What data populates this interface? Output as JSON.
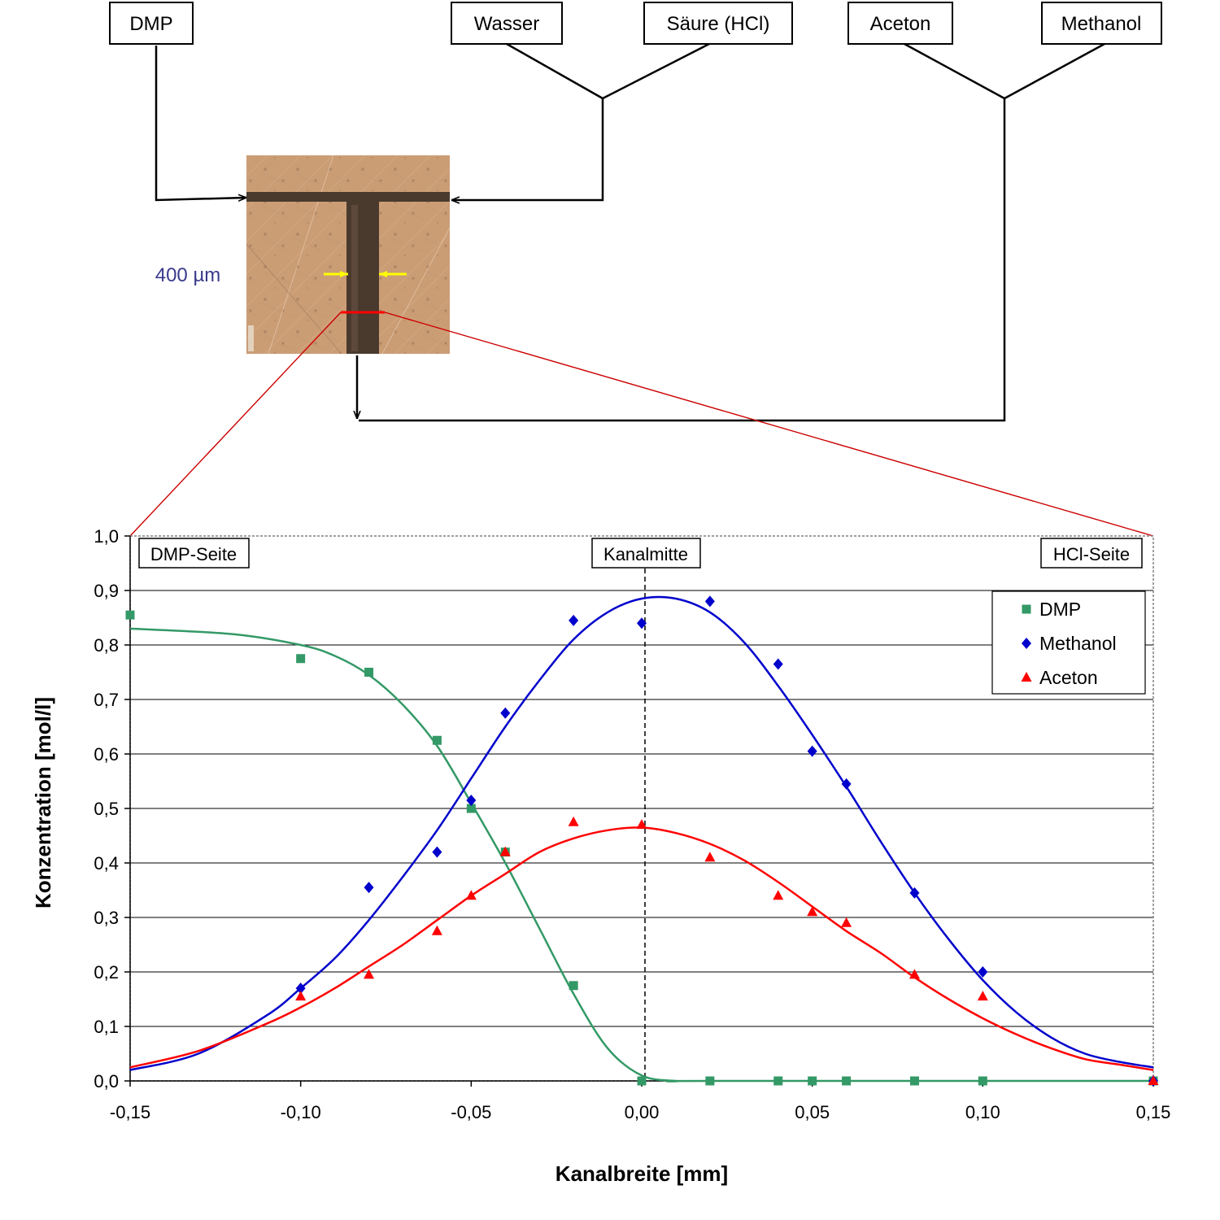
{
  "diagram": {
    "inputs": [
      {
        "id": "dmp",
        "label": "DMP"
      },
      {
        "id": "wasser",
        "label": "Wasser"
      },
      {
        "id": "saeure",
        "label": "Säure (HCl)"
      },
      {
        "id": "aceton",
        "label": "Aceton"
      },
      {
        "id": "methanol",
        "label": "Methanol"
      }
    ],
    "scale_label": "400 µm",
    "colors": {
      "lines": "#000000",
      "zoom_lines": "#cc0000",
      "scale_label": "#3a3a8c",
      "marker_arrows": "#ffff00"
    }
  },
  "chart_data": {
    "type": "scatter",
    "xlabel": "Kanalbreite [mm]",
    "ylabel": "Konzentration [mol/l]",
    "xlim": [
      -0.15,
      0.15
    ],
    "ylim": [
      0.0,
      1.0
    ],
    "x_ticks": [
      -0.15,
      -0.1,
      -0.05,
      0.0,
      0.05,
      0.1,
      0.15
    ],
    "x_tick_labels": [
      "-0,15",
      "-0,10",
      "-0,05",
      "0,00",
      "0,05",
      "0,10",
      "0,15"
    ],
    "y_ticks": [
      0.0,
      0.1,
      0.2,
      0.3,
      0.4,
      0.5,
      0.6,
      0.7,
      0.8,
      0.9,
      1.0
    ],
    "y_tick_labels": [
      "0,0",
      "0,1",
      "0,2",
      "0,3",
      "0,4",
      "0,5",
      "0,6",
      "0,7",
      "0,8",
      "0,9",
      "1,0"
    ],
    "grid": "horizontal",
    "legend_position": "top-right",
    "annotations": {
      "left": "DMP-Seite",
      "center": "Kanalmitte",
      "right": "HCl-Seite"
    },
    "center_line_x": 0.0,
    "series": [
      {
        "name": "DMP",
        "marker": "square",
        "color": "#339966",
        "x": [
          -0.15,
          -0.1,
          -0.08,
          -0.06,
          -0.05,
          -0.04,
          -0.02,
          0.0,
          0.02,
          0.04,
          0.05,
          0.06,
          0.08,
          0.1,
          0.15
        ],
        "y": [
          0.855,
          0.775,
          0.75,
          0.625,
          0.5,
          0.42,
          0.175,
          0.0,
          0.0,
          0.0,
          0.0,
          0.0,
          0.0,
          0.0,
          0.0
        ],
        "fit": {
          "x": [
            -0.15,
            -0.12,
            -0.1,
            -0.09,
            -0.08,
            -0.07,
            -0.06,
            -0.05,
            -0.04,
            -0.03,
            -0.02,
            -0.01,
            0.0,
            0.01,
            0.02,
            0.15
          ],
          "y": [
            0.83,
            0.82,
            0.8,
            0.78,
            0.745,
            0.69,
            0.615,
            0.51,
            0.4,
            0.28,
            0.16,
            0.06,
            0.01,
            0.0,
            0.0,
            0.0
          ]
        }
      },
      {
        "name": "Methanol",
        "marker": "diamond",
        "color": "#0000cc",
        "x": [
          -0.1,
          -0.08,
          -0.06,
          -0.05,
          -0.04,
          -0.02,
          0.0,
          0.02,
          0.04,
          0.05,
          0.06,
          0.08,
          0.1,
          0.15
        ],
        "y": [
          0.17,
          0.355,
          0.42,
          0.515,
          0.675,
          0.845,
          0.84,
          0.88,
          0.765,
          0.605,
          0.545,
          0.345,
          0.2,
          0.0
        ],
        "fit": {
          "x": [
            -0.15,
            -0.13,
            -0.11,
            -0.1,
            -0.09,
            -0.08,
            -0.07,
            -0.06,
            -0.05,
            -0.04,
            -0.03,
            -0.02,
            -0.01,
            0.0,
            0.01,
            0.02,
            0.03,
            0.04,
            0.05,
            0.06,
            0.07,
            0.08,
            0.09,
            0.1,
            0.11,
            0.12,
            0.13,
            0.14,
            0.15
          ],
          "y": [
            0.02,
            0.05,
            0.12,
            0.17,
            0.225,
            0.295,
            0.375,
            0.46,
            0.555,
            0.65,
            0.735,
            0.81,
            0.86,
            0.885,
            0.885,
            0.86,
            0.805,
            0.725,
            0.635,
            0.54,
            0.44,
            0.345,
            0.26,
            0.185,
            0.125,
            0.08,
            0.05,
            0.035,
            0.025
          ]
        }
      },
      {
        "name": "Aceton",
        "marker": "triangle",
        "color": "#ff0000",
        "x": [
          -0.1,
          -0.08,
          -0.06,
          -0.05,
          -0.04,
          -0.02,
          0.0,
          0.02,
          0.04,
          0.05,
          0.06,
          0.08,
          0.1,
          0.15
        ],
        "y": [
          0.155,
          0.195,
          0.275,
          0.34,
          0.42,
          0.475,
          0.47,
          0.41,
          0.34,
          0.31,
          0.29,
          0.195,
          0.155,
          0.0
        ],
        "fit": {
          "x": [
            -0.15,
            -0.13,
            -0.11,
            -0.1,
            -0.09,
            -0.08,
            -0.07,
            -0.06,
            -0.05,
            -0.04,
            -0.03,
            -0.02,
            -0.01,
            0.0,
            0.01,
            0.02,
            0.03,
            0.04,
            0.05,
            0.06,
            0.07,
            0.08,
            0.09,
            0.1,
            0.11,
            0.12,
            0.13,
            0.14,
            0.15
          ],
          "y": [
            0.025,
            0.055,
            0.105,
            0.135,
            0.17,
            0.21,
            0.25,
            0.295,
            0.34,
            0.38,
            0.42,
            0.445,
            0.46,
            0.465,
            0.455,
            0.435,
            0.405,
            0.365,
            0.32,
            0.275,
            0.235,
            0.19,
            0.15,
            0.115,
            0.085,
            0.06,
            0.04,
            0.03,
            0.02
          ]
        }
      }
    ]
  }
}
